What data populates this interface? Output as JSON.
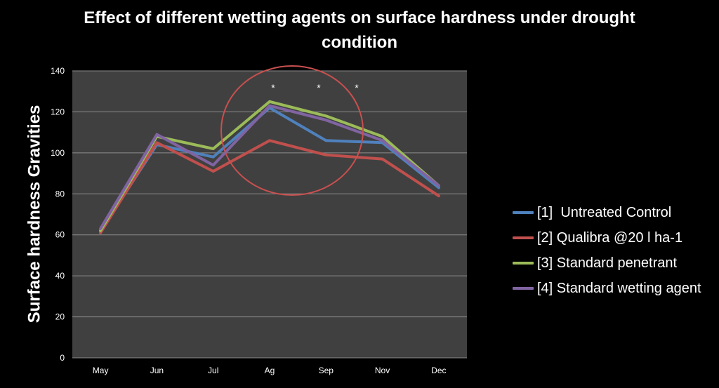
{
  "chart_data": {
    "type": "line",
    "title": "Effect of different wetting agents on surface hardness under drought condition",
    "ylabel": "Surface hardness Gravities",
    "categories": [
      "May",
      "Jun",
      "Jul",
      "Ag",
      "Sep",
      "Nov",
      "Dec"
    ],
    "ylim": [
      0,
      140
    ],
    "yticks": [
      0,
      20,
      40,
      60,
      80,
      100,
      120,
      140
    ],
    "grid": true,
    "legend_position": "right",
    "series": [
      {
        "name": "[1]  Untreated Control",
        "color": "#4F81BD",
        "values": [
          62,
          104,
          98,
          122,
          106,
          105,
          83
        ]
      },
      {
        "name": "[2] Qualibra @20 l ha-1",
        "color": "#C0504D",
        "values": [
          61,
          105,
          91,
          106,
          99,
          97,
          79
        ]
      },
      {
        "name": "[3] Standard penetrant",
        "color": "#9BBB59",
        "values": [
          62,
          108,
          102,
          125,
          118,
          108,
          84
        ]
      },
      {
        "name": "[4] Standard wetting agent",
        "color": "#8064A2",
        "values": [
          63,
          109,
          94,
          123,
          116,
          106,
          84
        ]
      }
    ],
    "annotations": [
      "*",
      "*",
      "*"
    ],
    "colors": {
      "background": "#000000",
      "plot_area": "#404040",
      "gridline": "#8C8C8C",
      "text": "#FFFFFF",
      "highlight": "#C9504F"
    }
  }
}
